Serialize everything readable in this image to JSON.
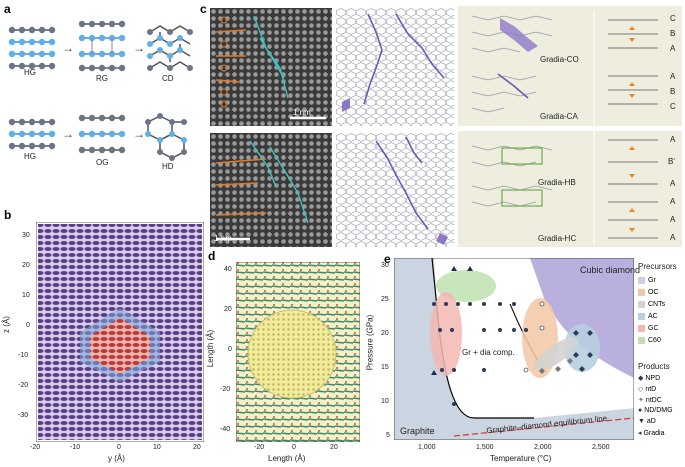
{
  "panels": {
    "a": {
      "letter": "a",
      "row1": [
        "HG",
        "RG",
        "CD"
      ],
      "row2": [
        "HG",
        "OG",
        "HD"
      ]
    },
    "b": {
      "letter": "b",
      "ylabel": "z (Å)",
      "xlabel": "y (Å)",
      "yticks": [
        "30",
        "20",
        "10",
        "0",
        "-10",
        "-20",
        "-30"
      ],
      "xticks": [
        "-20",
        "-10",
        "0",
        "10",
        "20"
      ]
    },
    "c": {
      "letter": "c",
      "scale_top": "1 nm",
      "scale_bottom": "1 nm",
      "models": [
        "Gradia-CO",
        "Gradia-CA",
        "Gradia-HB",
        "Gradia-HC"
      ],
      "stack_top": [
        "C",
        "B",
        "A",
        "A",
        "B",
        "C"
      ],
      "stack_bottom": [
        "A",
        "B'",
        "A",
        "A",
        "A",
        "A"
      ]
    },
    "d": {
      "letter": "d",
      "ylabel": "Length (Å)",
      "xlabel": "Length (Å)",
      "yticks": [
        "40",
        "20",
        "0",
        "-20",
        "-40"
      ],
      "xticks": [
        "-20",
        "0",
        "20"
      ]
    },
    "e": {
      "letter": "e",
      "ylabel": "Pressure (GPa)",
      "xlabel": "Temperature (°C)",
      "yticks": [
        "30",
        "25",
        "20",
        "15",
        "10",
        "5"
      ],
      "xticks": [
        "1,000",
        "1,500",
        "2,000",
        "2,500"
      ],
      "region_cubic": "Cubic diamond",
      "region_graphite": "Graphite",
      "region_comp": "Gr + dia comp.",
      "equilibrium": "Graphite–diamond equilibrium line",
      "precursors_title": "Precursors",
      "precursors": [
        {
          "label": "Gr",
          "color": "#c8d2e3"
        },
        {
          "label": "OC",
          "color": "#f2c7a3"
        },
        {
          "label": "CNTs",
          "color": "#d3d3d3"
        },
        {
          "label": "AC",
          "color": "#b8cfe0"
        },
        {
          "label": "GC",
          "color": "#f3b7b3"
        },
        {
          "label": "C60",
          "color": "#bfe0b0"
        }
      ],
      "products_title": "Products",
      "products": [
        "NPD",
        "ntD",
        "ntDC",
        "ND/DMG",
        "aD",
        "Gradia"
      ]
    }
  }
}
